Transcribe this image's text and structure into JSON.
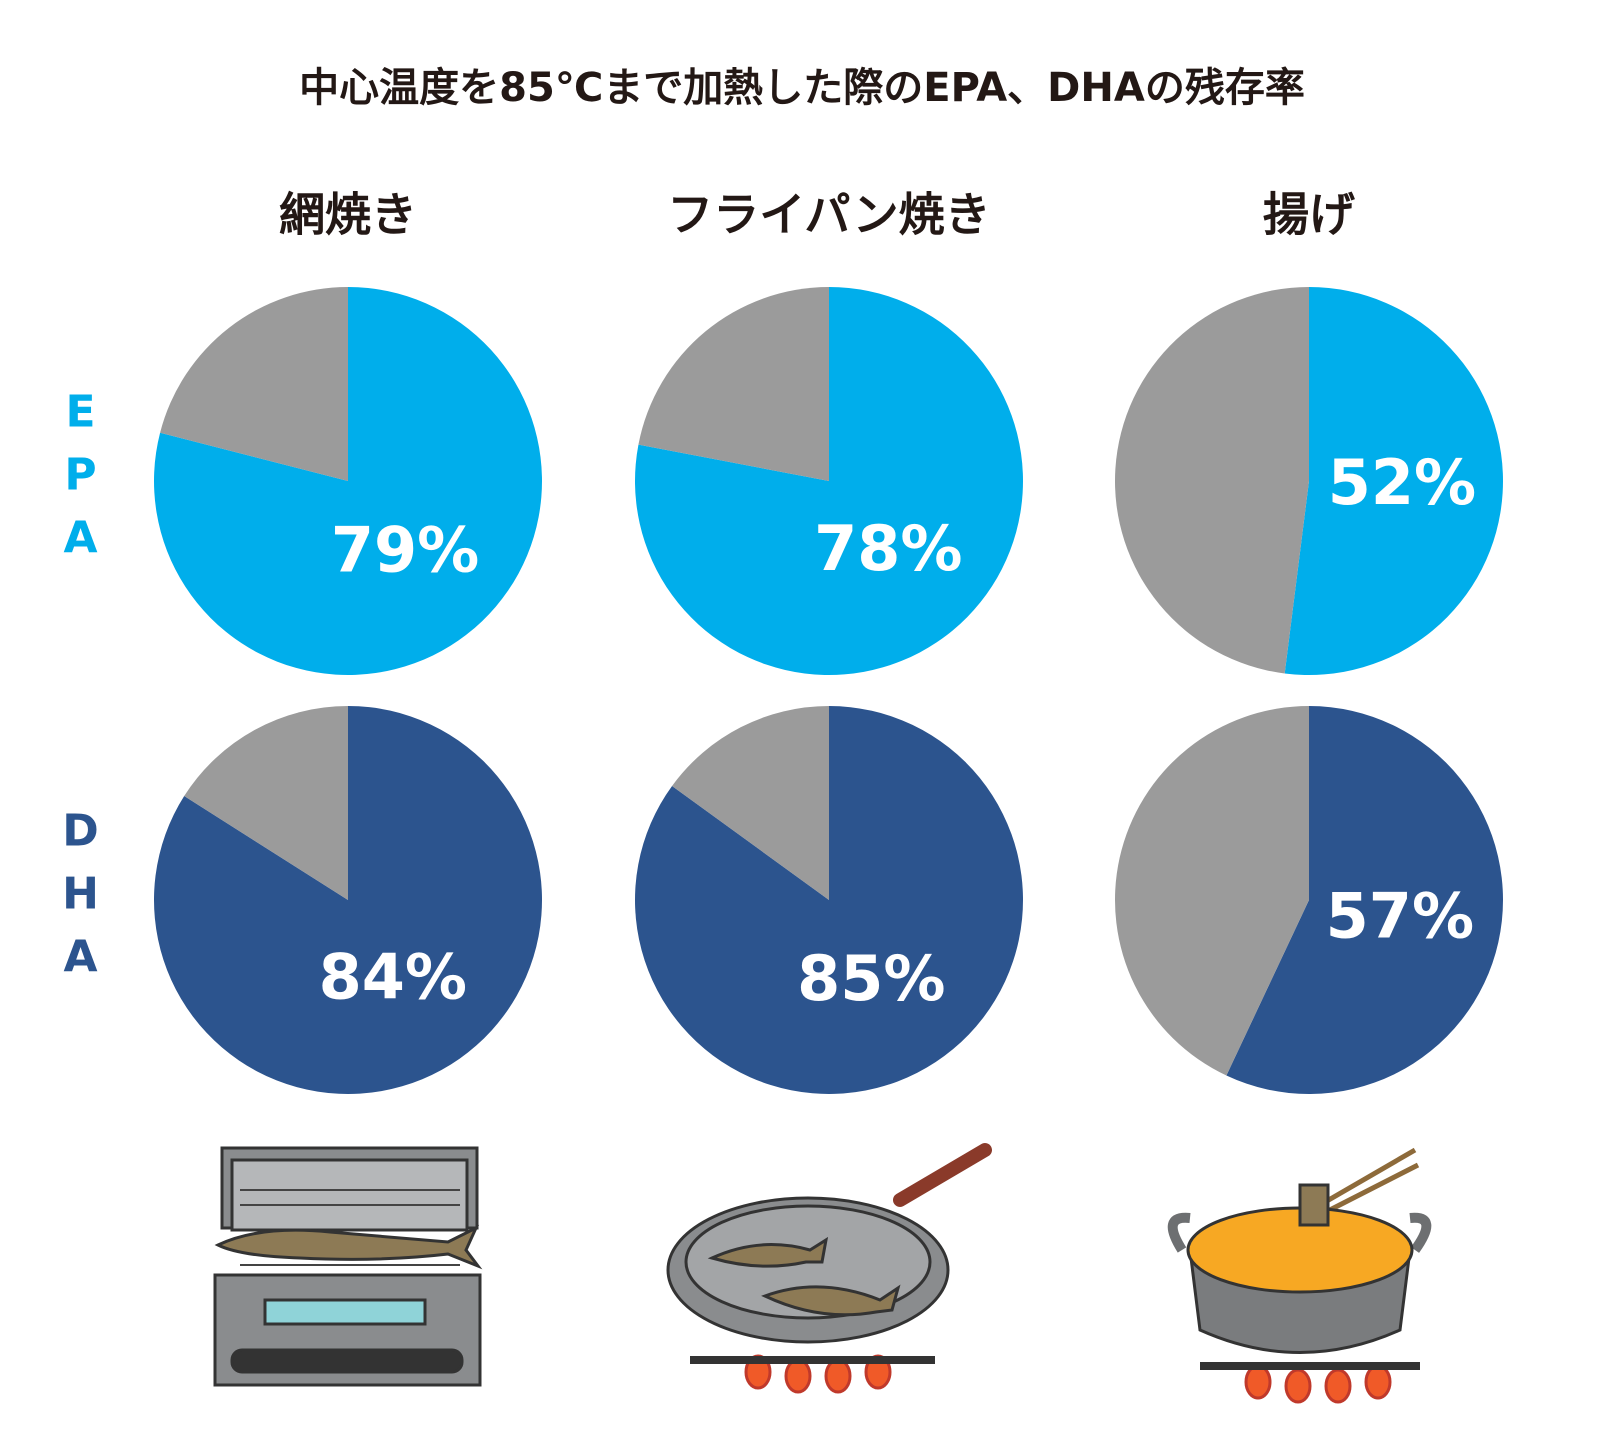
{
  "title": "中心温度を85℃まで加熱した際のEPA、DHAの残存率",
  "columns": [
    "網焼き",
    "フライパン焼き",
    "揚げ"
  ],
  "rows": [
    "EPA",
    "DHA"
  ],
  "chart_data": [
    {
      "type": "pie",
      "values": [
        79,
        21
      ],
      "value_labels": [
        "79%",
        null
      ],
      "colors": [
        "#00aeeb",
        "#9b9b9b"
      ]
    },
    {
      "type": "pie",
      "values": [
        78,
        22
      ],
      "value_labels": [
        "78%",
        null
      ],
      "colors": [
        "#00aeeb",
        "#9b9b9b"
      ]
    },
    {
      "type": "pie",
      "values": [
        52,
        48
      ],
      "value_labels": [
        "52%",
        null
      ],
      "colors": [
        "#00aeeb",
        "#9b9b9b"
      ]
    },
    {
      "type": "pie",
      "values": [
        84,
        16
      ],
      "value_labels": [
        "84%",
        null
      ],
      "colors": [
        "#2c548e",
        "#9b9b9b"
      ]
    },
    {
      "type": "pie",
      "values": [
        85,
        15
      ],
      "value_labels": [
        "85%",
        null
      ],
      "colors": [
        "#2c548e",
        "#9b9b9b"
      ]
    },
    {
      "type": "pie",
      "values": [
        57,
        43
      ],
      "value_labels": [
        "57%",
        null
      ],
      "colors": [
        "#2c548e",
        "#9b9b9b"
      ]
    }
  ]
}
